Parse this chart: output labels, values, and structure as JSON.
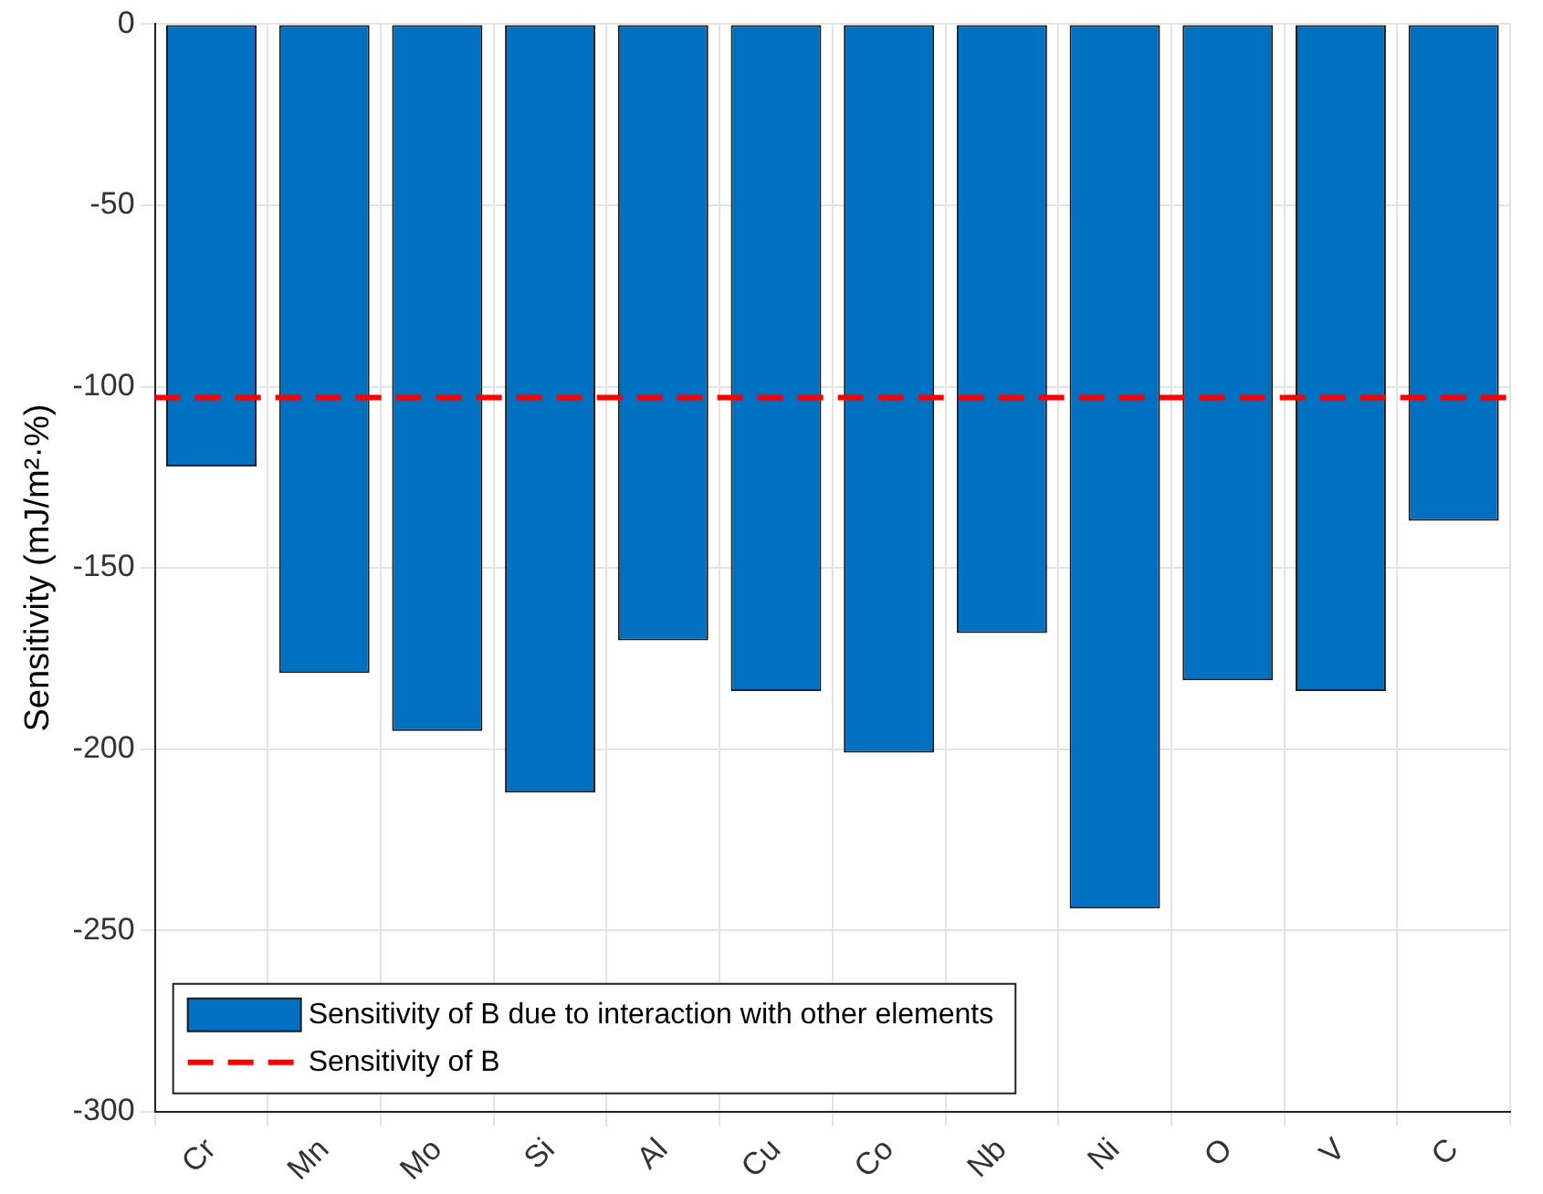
{
  "chart_data": {
    "type": "bar",
    "ylabel": "Sensitivity (mJ/m²·%)",
    "categories": [
      "Cr",
      "Mn",
      "Mo",
      "Si",
      "Al",
      "Cu",
      "Co",
      "Nb",
      "Ni",
      "O",
      "V",
      "C"
    ],
    "series": [
      {
        "name": "Sensitivity of B due to interaction with other elements",
        "color": "#0070c0",
        "values": [
          -122,
          -179,
          -195,
          -212,
          -170,
          -184,
          -201,
          -168,
          -244,
          -181,
          -184,
          -137
        ]
      }
    ],
    "ylim": [
      -300,
      0
    ],
    "yticks": [
      -300,
      -250,
      -200,
      -150,
      -100,
      -50,
      0
    ],
    "ref_lines": [
      {
        "axis": "y",
        "value": -103,
        "label": "Sensitivity of B",
        "color": "#ff0000",
        "line_style": "dashed"
      }
    ],
    "grid": true,
    "legend": "bottom left"
  }
}
